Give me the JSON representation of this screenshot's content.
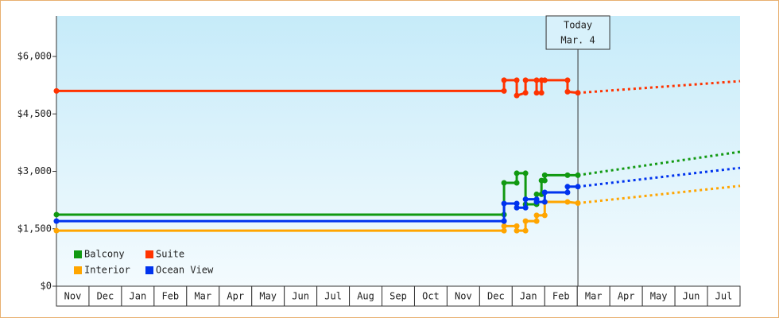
{
  "chart_data": {
    "type": "line",
    "categories": [
      "Nov",
      "Dec",
      "Jan",
      "Feb",
      "Mar",
      "Apr",
      "May",
      "Jun",
      "Jul",
      "Aug",
      "Sep",
      "Oct",
      "Nov",
      "Dec",
      "Jan",
      "Feb",
      "Mar",
      "Apr",
      "May",
      "Jun",
      "Jul"
    ],
    "xlim": [
      0,
      21
    ],
    "ylim": [
      0,
      7060
    ],
    "yticks": [
      {
        "value": 0,
        "label": "$0"
      },
      {
        "value": 1500,
        "label": "$1,500"
      },
      {
        "value": 3000,
        "label": "$3,000"
      },
      {
        "value": 4500,
        "label": "$4,500"
      },
      {
        "value": 6000,
        "label": "$6,000"
      }
    ],
    "annotation": {
      "x": 16.02,
      "lines": [
        "Today",
        "Mar. 4"
      ]
    },
    "legend": "lower left",
    "series": [
      {
        "name": "Balcony",
        "color": "#119911",
        "x": [
          0,
          13.75,
          13.75,
          14.14,
          14.14,
          14.41,
          14.41,
          14.75,
          14.75,
          14.9,
          14.9,
          15.0,
          15.0,
          15.7,
          16.02
        ],
        "values": [
          1870,
          1870,
          2700,
          2700,
          2950,
          2950,
          2140,
          2140,
          2400,
          2400,
          2760,
          2760,
          2900,
          2900,
          2900
        ],
        "forecast": {
          "x": [
            16.02,
            21
          ],
          "values": [
            2900,
            3510
          ]
        }
      },
      {
        "name": "Suite",
        "color": "#ff3300",
        "x": [
          0,
          13.75,
          13.75,
          14.14,
          14.14,
          14.41,
          14.41,
          14.75,
          14.75,
          14.9,
          14.9,
          15.0,
          15.7,
          15.7,
          16.02
        ],
        "values": [
          5100,
          5100,
          5380,
          5380,
          4980,
          5050,
          5380,
          5380,
          5050,
          5050,
          5380,
          5380,
          5380,
          5080,
          5050
        ],
        "forecast": {
          "x": [
            16.02,
            21
          ],
          "values": [
            5050,
            5356
          ]
        }
      },
      {
        "name": "Interior",
        "color": "#ffa500",
        "x": [
          0,
          13.75,
          13.75,
          14.14,
          14.14,
          14.41,
          14.41,
          14.75,
          14.75,
          15.0,
          15.0,
          15.7,
          16.02
        ],
        "values": [
          1450,
          1450,
          1570,
          1570,
          1450,
          1450,
          1700,
          1700,
          1850,
          1850,
          2200,
          2200,
          2170
        ],
        "forecast": {
          "x": [
            16.02,
            21
          ],
          "values": [
            2170,
            2620
          ]
        }
      },
      {
        "name": "Ocean View",
        "color": "#0033ee",
        "x": [
          0,
          13.75,
          13.75,
          14.14,
          14.14,
          14.41,
          14.41,
          14.75,
          14.75,
          15.0,
          15.0,
          15.7,
          15.7,
          16.02
        ],
        "values": [
          1700,
          1700,
          2160,
          2160,
          2050,
          2050,
          2270,
          2270,
          2200,
          2200,
          2450,
          2450,
          2600,
          2600
        ],
        "forecast": {
          "x": [
            16.02,
            21
          ],
          "values": [
            2600,
            3090
          ]
        }
      }
    ]
  }
}
